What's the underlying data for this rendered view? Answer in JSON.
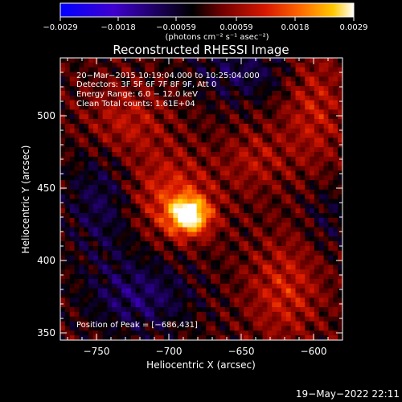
{
  "colorbar": {
    "ticks": [
      "−0.0029",
      "−0.0018",
      "−0.00059",
      "0.00059",
      "0.0018",
      "0.0029"
    ],
    "units_label": "(photons cm⁻² s⁻¹ asec⁻²)",
    "range": [
      -0.0029,
      0.0029
    ]
  },
  "plot": {
    "title": "Reconstructed RHESSI Image",
    "info_lines": [
      "20−Mar−2015 10:19:04.000 to 10:25:04.000",
      "Detectors: 3F 5F 6F 7F 8F 9F, Att 0",
      "Energy Range: 6.0 − 12.0 keV",
      "Clean    Total counts: 1.61E+04"
    ],
    "peak_label": "Position of Peak = [−686,431]"
  },
  "footer": {
    "timestamp": "19−May−2022 22:11"
  },
  "chart_data": {
    "type": "heatmap",
    "title": "Reconstructed RHESSI Image",
    "xlabel": "Heliocentric X (arcsec)",
    "ylabel": "Heliocentric Y (arcsec)",
    "xlim": [
      -775,
      -580
    ],
    "ylim": [
      345,
      540
    ],
    "xticks": [
      -750,
      -700,
      -650,
      -600
    ],
    "yticks": [
      350,
      400,
      450,
      500
    ],
    "xtick_labels": [
      "−750",
      "−700",
      "−650",
      "−600"
    ],
    "ytick_labels": [
      "350",
      "400",
      "450",
      "500"
    ],
    "colorscale": [
      "#0000ff",
      "#4000d0",
      "#000000",
      "#700000",
      "#d81800",
      "#ff6a00",
      "#ffc800",
      "#ffffff"
    ],
    "peak": {
      "x": -686,
      "y": 431,
      "value": 0.0029
    },
    "blobs": [
      {
        "x": -686,
        "y": 431,
        "amp": 0.0029,
        "sx": 10,
        "sy": 9
      },
      {
        "x": -700,
        "y": 445,
        "amp": 0.0012,
        "sx": 22,
        "sy": 20
      },
      {
        "x": -620,
        "y": 380,
        "amp": 0.001,
        "sx": 18,
        "sy": 25
      },
      {
        "x": -600,
        "y": 505,
        "amp": 0.0009,
        "sx": 15,
        "sy": 30
      },
      {
        "x": -730,
        "y": 495,
        "amp": 0.0009,
        "sx": 20,
        "sy": 18
      },
      {
        "x": -640,
        "y": 470,
        "amp": 0.0007,
        "sx": 15,
        "sy": 15
      },
      {
        "x": -745,
        "y": 440,
        "amp": -0.0009,
        "sx": 18,
        "sy": 28
      },
      {
        "x": -720,
        "y": 375,
        "amp": -0.001,
        "sx": 25,
        "sy": 18
      },
      {
        "x": -650,
        "y": 530,
        "amp": -0.0008,
        "sx": 25,
        "sy": 14
      },
      {
        "x": -590,
        "y": 430,
        "amp": -0.0005,
        "sx": 12,
        "sy": 18
      }
    ]
  }
}
